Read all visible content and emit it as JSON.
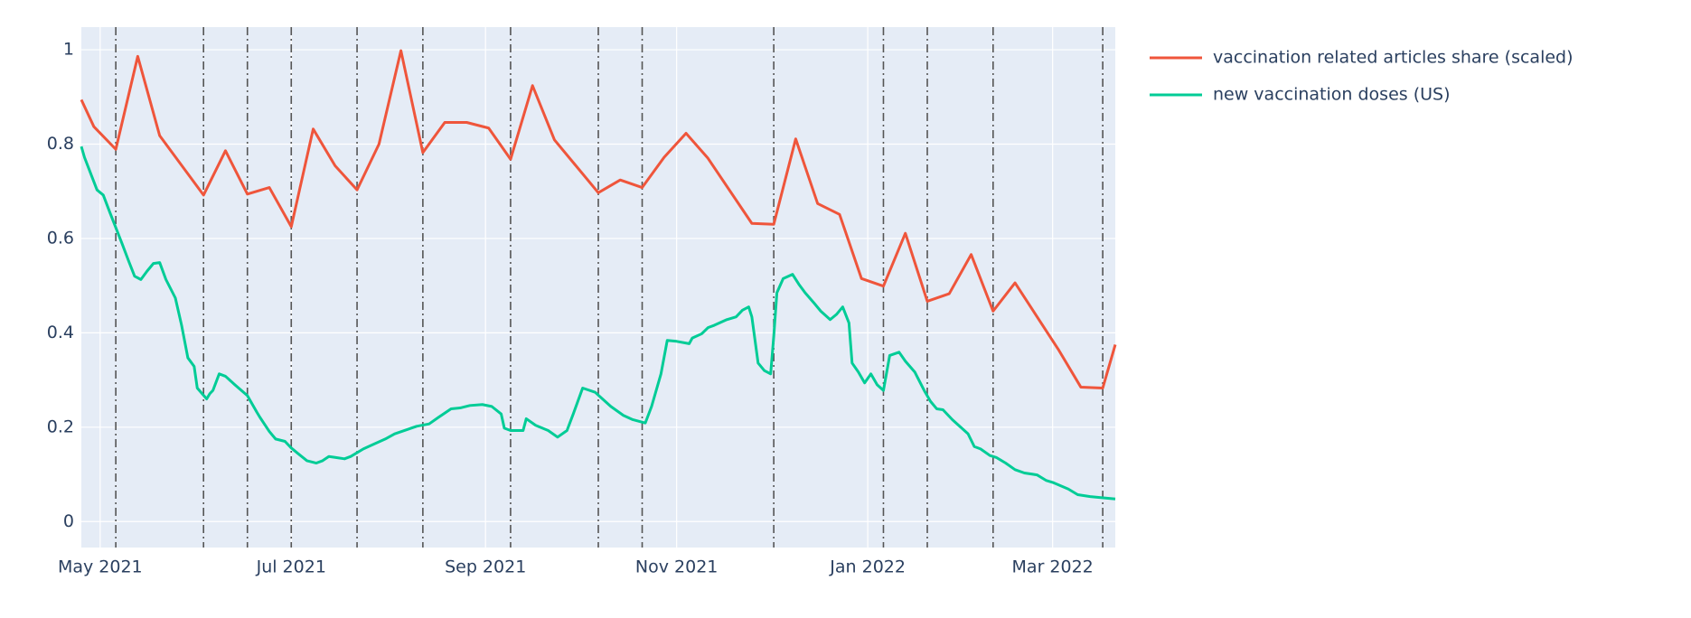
{
  "chart_data": {
    "type": "line",
    "xlim": [
      "2021-04-25",
      "2022-03-21"
    ],
    "ylim": [
      -0.055,
      1.048
    ],
    "yticks": [
      0,
      0.2,
      0.4,
      0.6,
      0.8,
      1
    ],
    "xticks": [
      {
        "value": "2021-05-01",
        "label": "May 2021"
      },
      {
        "value": "2021-07-01",
        "label": "Jul 2021"
      },
      {
        "value": "2021-09-01",
        "label": "Sep 2021"
      },
      {
        "value": "2021-11-01",
        "label": "Nov 2021"
      },
      {
        "value": "2022-01-01",
        "label": "Jan 2022"
      },
      {
        "value": "2022-03-01",
        "label": "Mar 2022"
      }
    ],
    "grid": true,
    "legend": "right",
    "vlines": [
      "2021-05-06",
      "2021-06-03",
      "2021-06-17",
      "2021-07-01",
      "2021-07-22",
      "2021-08-12",
      "2021-09-09",
      "2021-10-07",
      "2021-10-21",
      "2021-12-02",
      "2022-01-06",
      "2022-01-20",
      "2022-02-10",
      "2022-03-17"
    ],
    "series": [
      {
        "name": "vaccination related articles share (scaled)",
        "color": "#ef553b",
        "x": [
          "2021-04-25",
          "2021-04-29",
          "2021-05-06",
          "2021-05-13",
          "2021-05-20",
          "2021-06-03",
          "2021-06-10",
          "2021-06-17",
          "2021-06-24",
          "2021-07-01",
          "2021-07-08",
          "2021-07-15",
          "2021-07-22",
          "2021-07-29",
          "2021-08-05",
          "2021-08-12",
          "2021-08-19",
          "2021-08-26",
          "2021-09-02",
          "2021-09-09",
          "2021-09-16",
          "2021-09-23",
          "2021-10-07",
          "2021-10-14",
          "2021-10-21",
          "2021-10-28",
          "2021-11-04",
          "2021-11-11",
          "2021-11-25",
          "2021-12-02",
          "2021-12-09",
          "2021-12-16",
          "2021-12-23",
          "2021-12-30",
          "2022-01-06",
          "2022-01-13",
          "2022-01-20",
          "2022-01-27",
          "2022-02-03",
          "2022-02-10",
          "2022-02-17",
          "2022-03-03",
          "2022-03-10",
          "2022-03-17",
          "2022-03-21"
        ],
        "values": [
          0.894,
          0.837,
          0.789,
          0.986,
          0.818,
          0.692,
          0.786,
          0.694,
          0.708,
          0.625,
          0.832,
          0.754,
          0.703,
          0.8,
          0.998,
          0.782,
          0.846,
          0.846,
          0.834,
          0.768,
          0.924,
          0.809,
          0.697,
          0.724,
          0.708,
          0.772,
          0.823,
          0.77,
          0.632,
          0.63,
          0.811,
          0.674,
          0.651,
          0.515,
          0.499,
          0.611,
          0.467,
          0.483,
          0.566,
          0.446,
          0.506,
          0.363,
          0.285,
          0.283,
          0.375
        ]
      },
      {
        "name": "new vaccination doses (US)",
        "color": "#00cc96",
        "x": [
          "2021-04-25",
          "2021-04-26",
          "2021-04-30",
          "2021-05-02",
          "2021-05-04",
          "2021-05-06",
          "2021-05-08",
          "2021-05-10",
          "2021-05-12",
          "2021-05-14",
          "2021-05-16",
          "2021-05-18",
          "2021-05-20",
          "2021-05-22",
          "2021-05-25",
          "2021-05-27",
          "2021-05-29",
          "2021-05-31",
          "2021-06-01",
          "2021-06-04",
          "2021-06-05",
          "2021-06-06",
          "2021-06-08",
          "2021-06-10",
          "2021-06-13",
          "2021-06-17",
          "2021-06-20",
          "2021-06-21",
          "2021-06-24",
          "2021-06-26",
          "2021-06-29",
          "2021-07-01",
          "2021-07-03",
          "2021-07-06",
          "2021-07-09",
          "2021-07-11",
          "2021-07-13",
          "2021-07-15",
          "2021-07-18",
          "2021-07-20",
          "2021-07-24",
          "2021-07-27",
          "2021-07-31",
          "2021-08-03",
          "2021-08-07",
          "2021-08-10",
          "2021-08-14",
          "2021-08-17",
          "2021-08-21",
          "2021-08-24",
          "2021-08-27",
          "2021-08-31",
          "2021-09-03",
          "2021-09-06",
          "2021-09-07",
          "2021-09-09",
          "2021-09-13",
          "2021-09-14",
          "2021-09-17",
          "2021-09-21",
          "2021-09-24",
          "2021-09-27",
          "2021-09-29",
          "2021-10-02",
          "2021-10-06",
          "2021-10-08",
          "2021-10-11",
          "2021-10-15",
          "2021-10-18",
          "2021-10-22",
          "2021-10-24",
          "2021-10-27",
          "2021-10-29",
          "2021-11-01",
          "2021-11-05",
          "2021-11-06",
          "2021-11-09",
          "2021-11-11",
          "2021-11-13",
          "2021-11-17",
          "2021-11-20",
          "2021-11-22",
          "2021-11-24",
          "2021-11-25",
          "2021-11-27",
          "2021-11-29",
          "2021-12-01",
          "2021-12-02",
          "2021-12-03",
          "2021-12-05",
          "2021-12-08",
          "2021-12-10",
          "2021-12-12",
          "2021-12-15",
          "2021-12-17",
          "2021-12-20",
          "2021-12-22",
          "2021-12-24",
          "2021-12-26",
          "2021-12-27",
          "2021-12-29",
          "2021-12-31",
          "2022-01-02",
          "2022-01-04",
          "2022-01-06",
          "2022-01-08",
          "2022-01-11",
          "2022-01-13",
          "2022-01-16",
          "2022-01-19",
          "2022-01-21",
          "2022-01-23",
          "2022-01-25",
          "2022-01-28",
          "2022-01-30",
          "2022-02-02",
          "2022-02-04",
          "2022-02-06",
          "2022-02-09",
          "2022-02-11",
          "2022-02-14",
          "2022-02-17",
          "2022-02-20",
          "2022-02-24",
          "2022-02-27",
          "2022-03-01",
          "2022-03-06",
          "2022-03-09",
          "2022-03-13",
          "2022-03-16",
          "2022-03-21"
        ],
        "values": [
          0.795,
          0.772,
          0.703,
          0.692,
          0.657,
          0.623,
          0.589,
          0.554,
          0.52,
          0.513,
          0.531,
          0.547,
          0.549,
          0.513,
          0.474,
          0.416,
          0.347,
          0.329,
          0.283,
          0.26,
          0.271,
          0.278,
          0.313,
          0.308,
          0.29,
          0.267,
          0.232,
          0.221,
          0.191,
          0.175,
          0.17,
          0.156,
          0.145,
          0.129,
          0.124,
          0.129,
          0.138,
          0.136,
          0.133,
          0.138,
          0.154,
          0.163,
          0.175,
          0.186,
          0.195,
          0.202,
          0.207,
          0.221,
          0.239,
          0.241,
          0.246,
          0.248,
          0.244,
          0.228,
          0.198,
          0.193,
          0.193,
          0.218,
          0.204,
          0.193,
          0.179,
          0.193,
          0.228,
          0.283,
          0.274,
          0.262,
          0.244,
          0.225,
          0.216,
          0.209,
          0.244,
          0.313,
          0.384,
          0.382,
          0.377,
          0.389,
          0.398,
          0.411,
          0.416,
          0.428,
          0.434,
          0.448,
          0.455,
          0.434,
          0.336,
          0.32,
          0.313,
          0.393,
          0.485,
          0.515,
          0.524,
          0.503,
          0.485,
          0.462,
          0.446,
          0.428,
          0.439,
          0.455,
          0.421,
          0.336,
          0.317,
          0.294,
          0.313,
          0.29,
          0.278,
          0.352,
          0.359,
          0.34,
          0.317,
          0.278,
          0.255,
          0.239,
          0.237,
          0.216,
          0.204,
          0.186,
          0.159,
          0.154,
          0.14,
          0.136,
          0.124,
          0.11,
          0.103,
          0.099,
          0.087,
          0.083,
          0.069,
          0.057,
          0.053,
          0.051,
          0.048
        ]
      }
    ]
  }
}
